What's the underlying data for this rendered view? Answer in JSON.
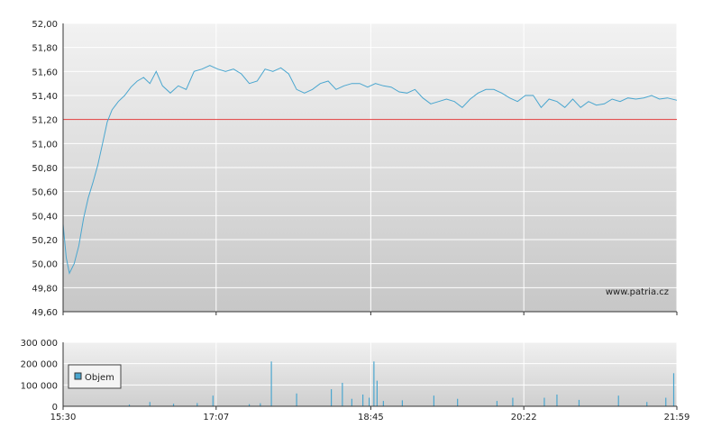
{
  "chart_data": [
    {
      "type": "line",
      "panel": "price",
      "y_ticks": [
        "52,00",
        "51,80",
        "51,60",
        "51,40",
        "51,20",
        "51,00",
        "50,80",
        "50,60",
        "50,40",
        "50,20",
        "50,00",
        "49,80",
        "49,60"
      ],
      "ylim": [
        49.6,
        52.0
      ],
      "reference_line": 51.2,
      "watermark": "www.patria.cz",
      "x_ticks": [
        "15:30",
        "17:07",
        "18:45",
        "20:22",
        "21:59"
      ],
      "series": [
        {
          "color": "#4aa6cf",
          "points": [
            [
              "15:30",
              50.33
            ],
            [
              "15:32",
              50.05
            ],
            [
              "15:34",
              49.92
            ],
            [
              "15:37",
              50.0
            ],
            [
              "15:40",
              50.15
            ],
            [
              "15:43",
              50.38
            ],
            [
              "15:46",
              50.55
            ],
            [
              "15:49",
              50.68
            ],
            [
              "15:52",
              50.82
            ],
            [
              "15:55",
              51.0
            ],
            [
              "15:58",
              51.18
            ],
            [
              "16:01",
              51.28
            ],
            [
              "16:05",
              51.35
            ],
            [
              "16:09",
              51.4
            ],
            [
              "16:13",
              51.47
            ],
            [
              "16:17",
              51.52
            ],
            [
              "16:21",
              51.55
            ],
            [
              "16:25",
              51.5
            ],
            [
              "16:29",
              51.6
            ],
            [
              "16:33",
              51.48
            ],
            [
              "16:38",
              51.42
            ],
            [
              "16:43",
              51.48
            ],
            [
              "16:48",
              51.45
            ],
            [
              "16:53",
              51.6
            ],
            [
              "16:58",
              51.62
            ],
            [
              "17:03",
              51.65
            ],
            [
              "17:08",
              51.62
            ],
            [
              "17:13",
              51.6
            ],
            [
              "17:18",
              51.62
            ],
            [
              "17:23",
              51.58
            ],
            [
              "17:28",
              51.5
            ],
            [
              "17:33",
              51.52
            ],
            [
              "17:38",
              51.62
            ],
            [
              "17:43",
              51.6
            ],
            [
              "17:48",
              51.63
            ],
            [
              "17:53",
              51.58
            ],
            [
              "17:58",
              51.45
            ],
            [
              "18:03",
              51.42
            ],
            [
              "18:08",
              51.45
            ],
            [
              "18:13",
              51.5
            ],
            [
              "18:18",
              51.52
            ],
            [
              "18:23",
              51.45
            ],
            [
              "18:28",
              51.48
            ],
            [
              "18:33",
              51.5
            ],
            [
              "18:38",
              51.5
            ],
            [
              "18:43",
              51.47
            ],
            [
              "18:48",
              51.5
            ],
            [
              "18:53",
              51.48
            ],
            [
              "18:58",
              51.47
            ],
            [
              "19:03",
              51.43
            ],
            [
              "19:08",
              51.42
            ],
            [
              "19:13",
              51.45
            ],
            [
              "19:18",
              51.38
            ],
            [
              "19:23",
              51.33
            ],
            [
              "19:28",
              51.35
            ],
            [
              "19:33",
              51.37
            ],
            [
              "19:38",
              51.35
            ],
            [
              "19:43",
              51.3
            ],
            [
              "19:48",
              51.37
            ],
            [
              "19:53",
              51.42
            ],
            [
              "19:58",
              51.45
            ],
            [
              "20:03",
              51.45
            ],
            [
              "20:08",
              51.42
            ],
            [
              "20:13",
              51.38
            ],
            [
              "20:18",
              51.35
            ],
            [
              "20:23",
              51.4
            ],
            [
              "20:28",
              51.4
            ],
            [
              "20:33",
              51.3
            ],
            [
              "20:38",
              51.37
            ],
            [
              "20:43",
              51.35
            ],
            [
              "20:48",
              51.3
            ],
            [
              "20:53",
              51.37
            ],
            [
              "20:58",
              51.3
            ],
            [
              "21:03",
              51.35
            ],
            [
              "21:08",
              51.32
            ],
            [
              "21:13",
              51.33
            ],
            [
              "21:18",
              51.37
            ],
            [
              "21:23",
              51.35
            ],
            [
              "21:28",
              51.38
            ],
            [
              "21:33",
              51.37
            ],
            [
              "21:38",
              51.38
            ],
            [
              "21:43",
              51.4
            ],
            [
              "21:48",
              51.37
            ],
            [
              "21:53",
              51.38
            ],
            [
              "21:59",
              51.36
            ]
          ]
        }
      ]
    },
    {
      "type": "bar",
      "panel": "volume",
      "y_ticks": [
        "300 000",
        "200 000",
        "100 000",
        "0"
      ],
      "ylim": [
        0,
        300000
      ],
      "x_ticks": [
        "15:30",
        "17:07",
        "18:45",
        "20:22",
        "21:59"
      ],
      "series": [
        {
          "name": "Objem",
          "color": "#4aa6cf",
          "points": [
            [
              "16:12",
              8000
            ],
            [
              "16:25",
              20000
            ],
            [
              "16:40",
              12000
            ],
            [
              "16:55",
              15000
            ],
            [
              "17:05",
              50000
            ],
            [
              "17:28",
              10000
            ],
            [
              "17:35",
              14000
            ],
            [
              "17:42",
              210000
            ],
            [
              "17:58",
              60000
            ],
            [
              "18:20",
              80000
            ],
            [
              "18:27",
              110000
            ],
            [
              "18:33",
              35000
            ],
            [
              "18:40",
              55000
            ],
            [
              "18:44",
              40000
            ],
            [
              "18:47",
              210000
            ],
            [
              "18:49",
              120000
            ],
            [
              "18:53",
              25000
            ],
            [
              "19:05",
              28000
            ],
            [
              "19:25",
              50000
            ],
            [
              "19:40",
              35000
            ],
            [
              "20:05",
              25000
            ],
            [
              "20:15",
              40000
            ],
            [
              "20:35",
              40000
            ],
            [
              "20:43",
              55000
            ],
            [
              "20:57",
              30000
            ],
            [
              "21:22",
              50000
            ],
            [
              "21:40",
              20000
            ],
            [
              "21:52",
              40000
            ],
            [
              "21:57",
              155000
            ]
          ]
        }
      ]
    }
  ]
}
